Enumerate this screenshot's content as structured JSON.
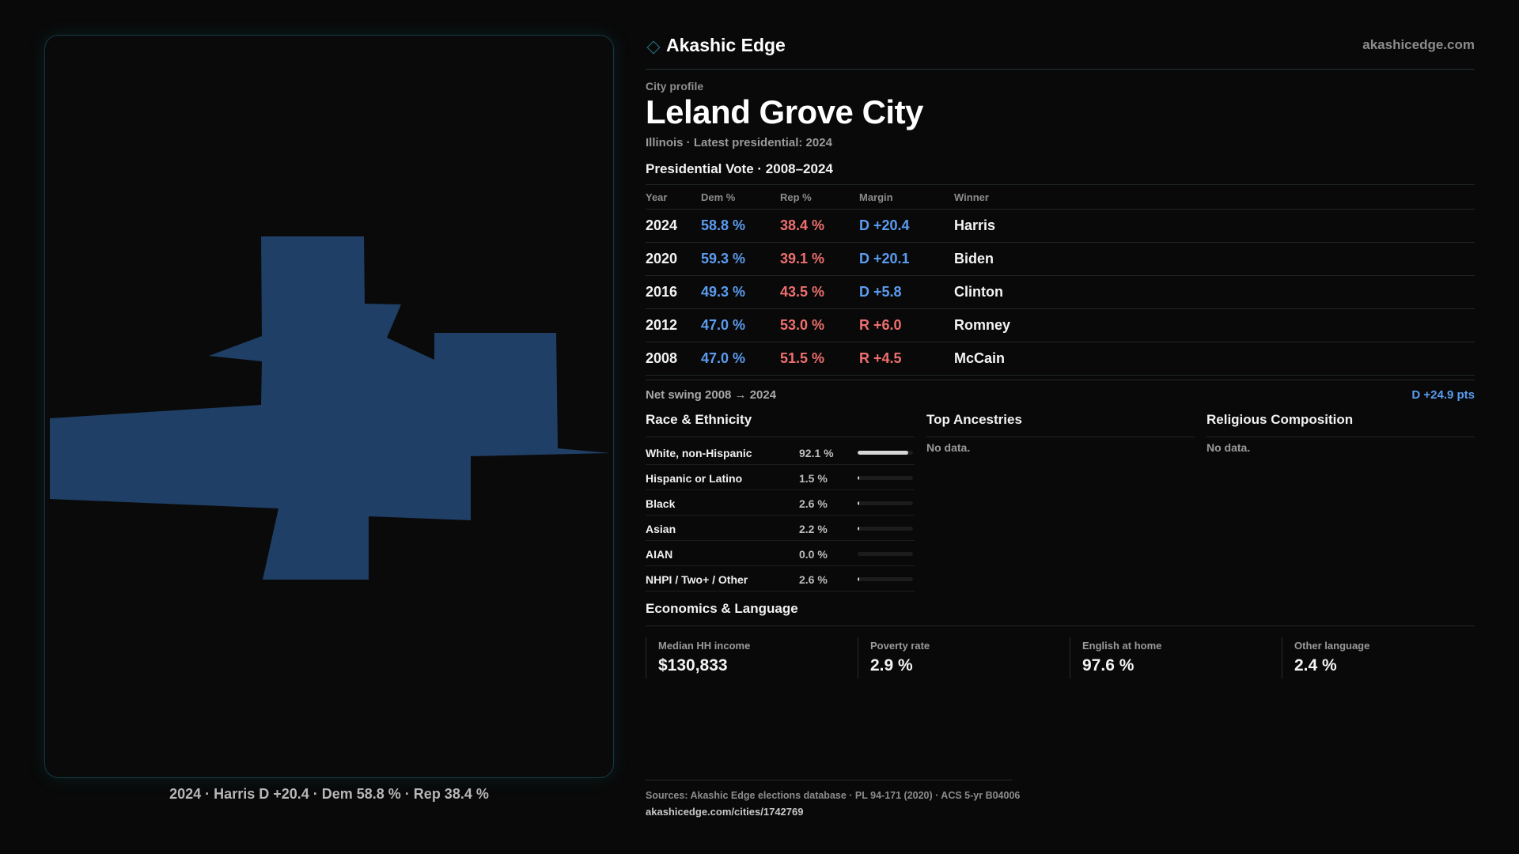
{
  "brand": {
    "name": "Akashic Edge",
    "url": "akashicedge.com",
    "icon": "diamond-icon"
  },
  "profile": {
    "eyebrow": "City profile",
    "city": "Leland Grove City",
    "subtitle": "Illinois · Latest presidential: 2024"
  },
  "vote": {
    "title": "Presidential Vote · 2008–2024",
    "headers": {
      "year": "Year",
      "dem": "Dem %",
      "rep": "Rep %",
      "margin": "Margin",
      "winner": "Winner"
    },
    "rows": [
      {
        "year": "2024",
        "dem": "58.8 %",
        "rep": "38.4 %",
        "margin": "D +20.4",
        "party": "D",
        "winner": "Harris"
      },
      {
        "year": "2020",
        "dem": "59.3 %",
        "rep": "39.1 %",
        "margin": "D +20.1",
        "party": "D",
        "winner": "Biden"
      },
      {
        "year": "2016",
        "dem": "49.3 %",
        "rep": "43.5 %",
        "margin": "D +5.8",
        "party": "D",
        "winner": "Clinton"
      },
      {
        "year": "2012",
        "dem": "47.0 %",
        "rep": "53.0 %",
        "margin": "R +6.0",
        "party": "R",
        "winner": "Romney"
      },
      {
        "year": "2008",
        "dem": "47.0 %",
        "rep": "51.5 %",
        "margin": "R +4.5",
        "party": "R",
        "winner": "McCain"
      }
    ],
    "swing_label": "Net swing 2008 → 2024",
    "swing_value": "D +24.9 pts"
  },
  "race": {
    "title": "Race & Ethnicity",
    "rows": [
      {
        "label": "White, non-Hispanic",
        "value": "92.1 %",
        "share": 0.921
      },
      {
        "label": "Hispanic or Latino",
        "value": "1.5 %",
        "share": 0.015
      },
      {
        "label": "Black",
        "value": "2.6 %",
        "share": 0.026
      },
      {
        "label": "Asian",
        "value": "2.2 %",
        "share": 0.022
      },
      {
        "label": "AIAN",
        "value": "0.0 %",
        "share": 0.0
      },
      {
        "label": "NHPI / Two+ / Other",
        "value": "2.6 %",
        "share": 0.026
      }
    ]
  },
  "ancestries": {
    "title": "Top Ancestries",
    "empty": "No data."
  },
  "religion": {
    "title": "Religious Composition",
    "empty": "No data."
  },
  "economics": {
    "title": "Economics & Language",
    "stats": [
      {
        "label": "Median HH income",
        "value": "$130,833"
      },
      {
        "label": "Poverty rate",
        "value": "2.9 %"
      },
      {
        "label": "English at home",
        "value": "97.6 %"
      },
      {
        "label": "Other language",
        "value": "2.4 %"
      }
    ]
  },
  "map": {
    "caption": "2024 · Harris D +20.4 · Dem 58.8 % · Rep 38.4 %",
    "fill_color": "#1f3f66"
  },
  "colors": {
    "dem": "#5b9cf0",
    "rep": "#ef6f6f",
    "accent": "#2a7d8f"
  },
  "footer": {
    "sources": "Sources: Akashic Edge elections database · PL 94-171 (2020) · ACS 5-yr B04006",
    "url": "akashicedge.com/cities/1742769"
  }
}
